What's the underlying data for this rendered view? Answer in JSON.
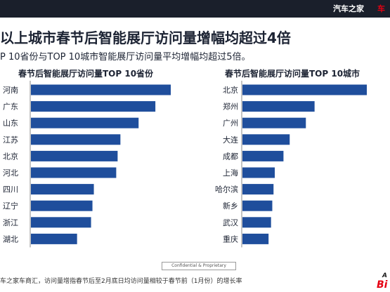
{
  "brand": {
    "name": "汽车之家",
    "accent": "车"
  },
  "headline": "以上城市春节后智能展厅访问量增幅均超过4倍",
  "subline": "P 10省份与TOP 10城市智能展厅访问量平均增幅均超过5倍。",
  "chart_data": [
    {
      "type": "bar",
      "orientation": "horizontal",
      "title": "春节后智能展厅访问量TOP 10省份",
      "categories": [
        "河南",
        "广东",
        "山东",
        "江苏",
        "北京",
        "河北",
        "四川",
        "辽宁",
        "浙江",
        "湖北"
      ],
      "values": [
        100,
        89,
        77,
        64,
        62,
        61,
        45,
        44,
        43,
        33
      ],
      "xlim": [
        0,
        100
      ],
      "grid": false,
      "bar_color": "#1f4e9c"
    },
    {
      "type": "bar",
      "orientation": "horizontal",
      "title": "春节后智能展厅访问量TOP 10城市",
      "categories": [
        "北京",
        "郑州",
        "广州",
        "大连",
        "成都",
        "上海",
        "哈尔滨",
        "新乡",
        "武汉",
        "重庆"
      ],
      "values": [
        100,
        58,
        51,
        38,
        33,
        26,
        25,
        24,
        23,
        21
      ],
      "xlim": [
        0,
        100
      ],
      "grid": false,
      "bar_color": "#1f4e9c"
    }
  ],
  "footer": {
    "confidential": "Confidential & Proprietary",
    "source": "车之家车商汇，访问量增指春节后至2月底日均访问量相较于春节前（1月份）的增长率"
  },
  "corner_mark": {
    "top": "A",
    "bottom": "Bi"
  }
}
